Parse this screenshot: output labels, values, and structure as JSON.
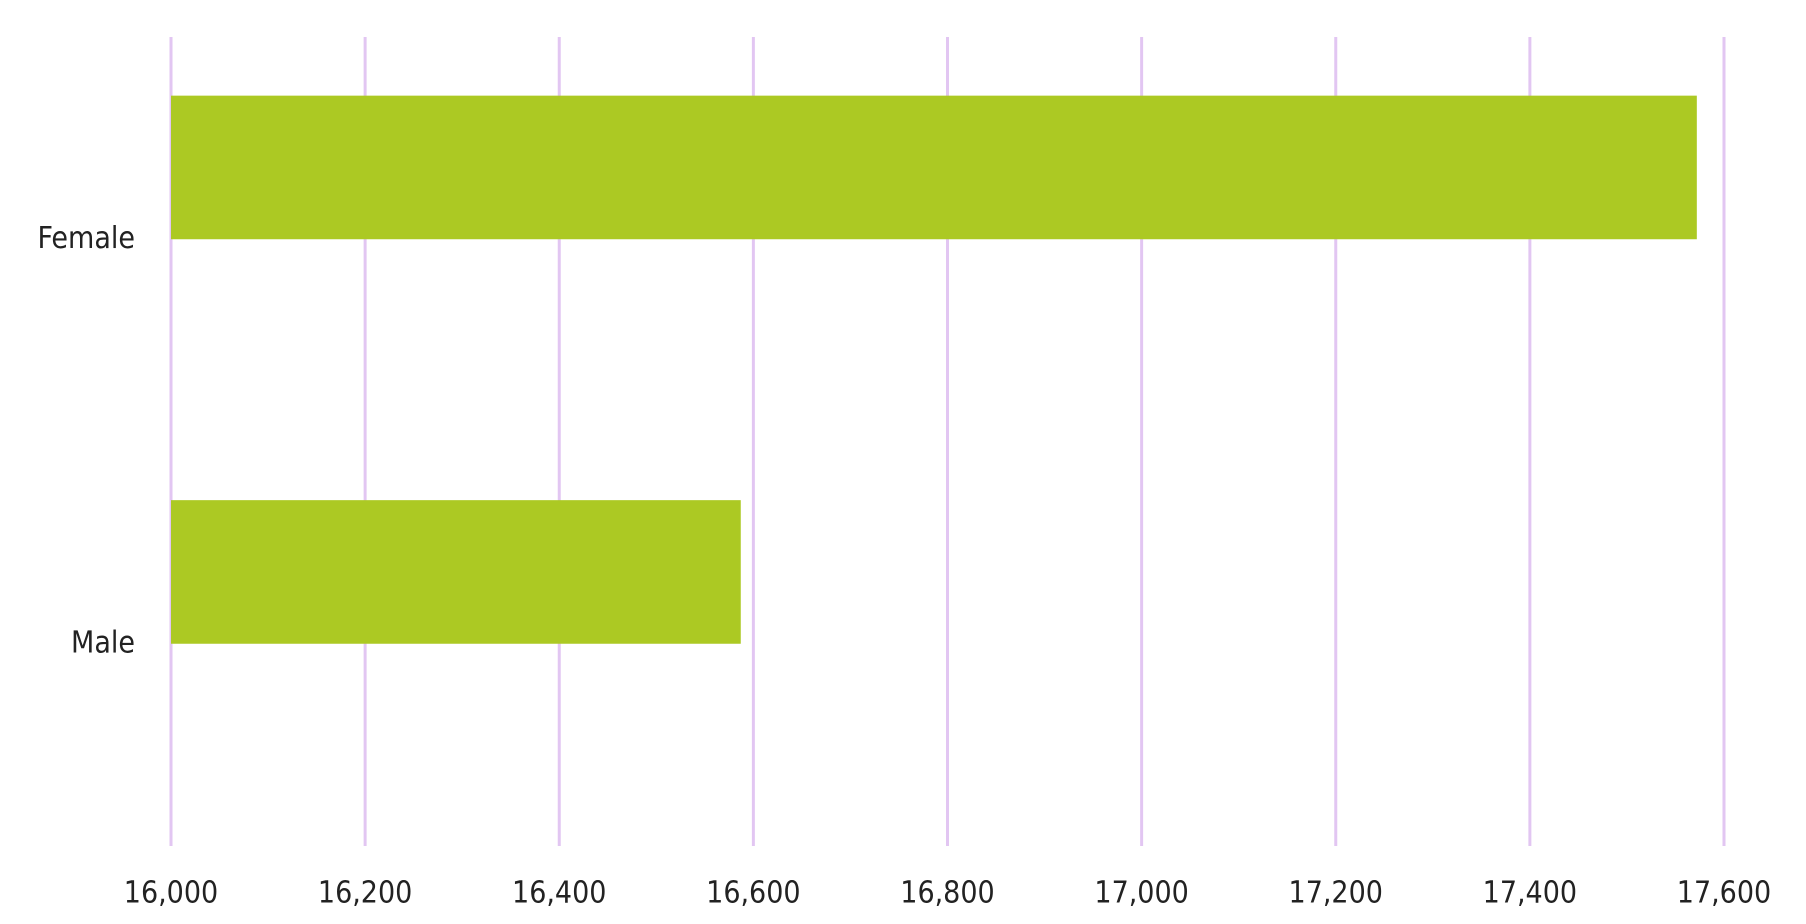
{
  "chart_data": {
    "type": "hbar",
    "categories": [
      "Female",
      "Male"
    ],
    "values": [
      17572,
      16587
    ],
    "color": "#acc923",
    "xlim": [
      16000,
      17600
    ],
    "xticks": [
      {
        "value": 16000,
        "label": "16,000"
      },
      {
        "value": 16200,
        "label": "16,200"
      },
      {
        "value": 16400,
        "label": "16,400"
      },
      {
        "value": 16600,
        "label": "16,600"
      },
      {
        "value": 16800,
        "label": "16,800"
      },
      {
        "value": 17000,
        "label": "17,000"
      },
      {
        "value": 17200,
        "label": "17,200"
      },
      {
        "value": 17400,
        "label": "17,400"
      },
      {
        "value": 17600,
        "label": "17,600"
      }
    ],
    "grid": true,
    "grid_color": "#e2c6f2"
  }
}
